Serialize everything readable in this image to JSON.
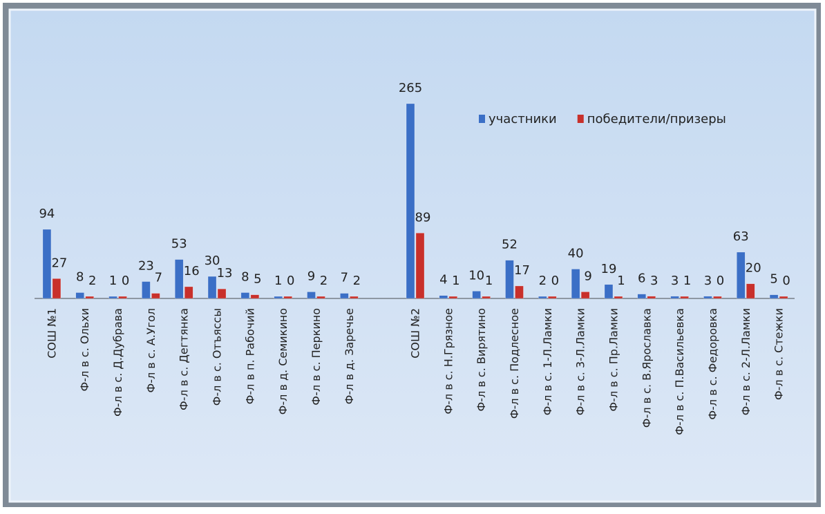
{
  "chart_data": {
    "type": "bar",
    "categories": [
      "СОШ №1",
      "Ф-л в с. Ольхи",
      "Ф-л в с. Д.Дубрава",
      "Ф-л в с. А.Угол",
      "Ф-л в с. Дегтянка",
      "Ф-л в с. Отъяссы",
      "Ф-л в п. Рабочий",
      "Ф-л в д. Семикино",
      "Ф-л в с. Перкино",
      "Ф-л в д. Заречье",
      null,
      "СОШ №2",
      "Ф-л в с. Н.Грязное",
      "Ф-л в с. Вирятино",
      "Ф-л в с. Подлесное",
      "Ф-л в с. 1-Л.Ламки",
      "Ф-л в с. 3-Л.Ламки",
      "Ф-л в с. Пр.Ламки",
      "Ф-л в с. В.Ярославка",
      "Ф-л в с. П.Васильевка",
      "Ф-л в с. Федоровка",
      "Ф-л в с. 2-Л.Ламки",
      "Ф-л в с. Стежки"
    ],
    "series": [
      {
        "name": "участники",
        "color": "#3b6fc6",
        "values": [
          94,
          8,
          1,
          23,
          53,
          30,
          8,
          1,
          9,
          7,
          null,
          265,
          4,
          10,
          52,
          2,
          40,
          19,
          6,
          3,
          3,
          63,
          5
        ]
      },
      {
        "name": "победители/призеры",
        "color": "#c8302b",
        "values": [
          27,
          2,
          0,
          7,
          16,
          13,
          5,
          0,
          2,
          2,
          null,
          89,
          1,
          1,
          17,
          0,
          9,
          1,
          3,
          1,
          0,
          20,
          0
        ]
      }
    ],
    "legend": "top-right"
  }
}
